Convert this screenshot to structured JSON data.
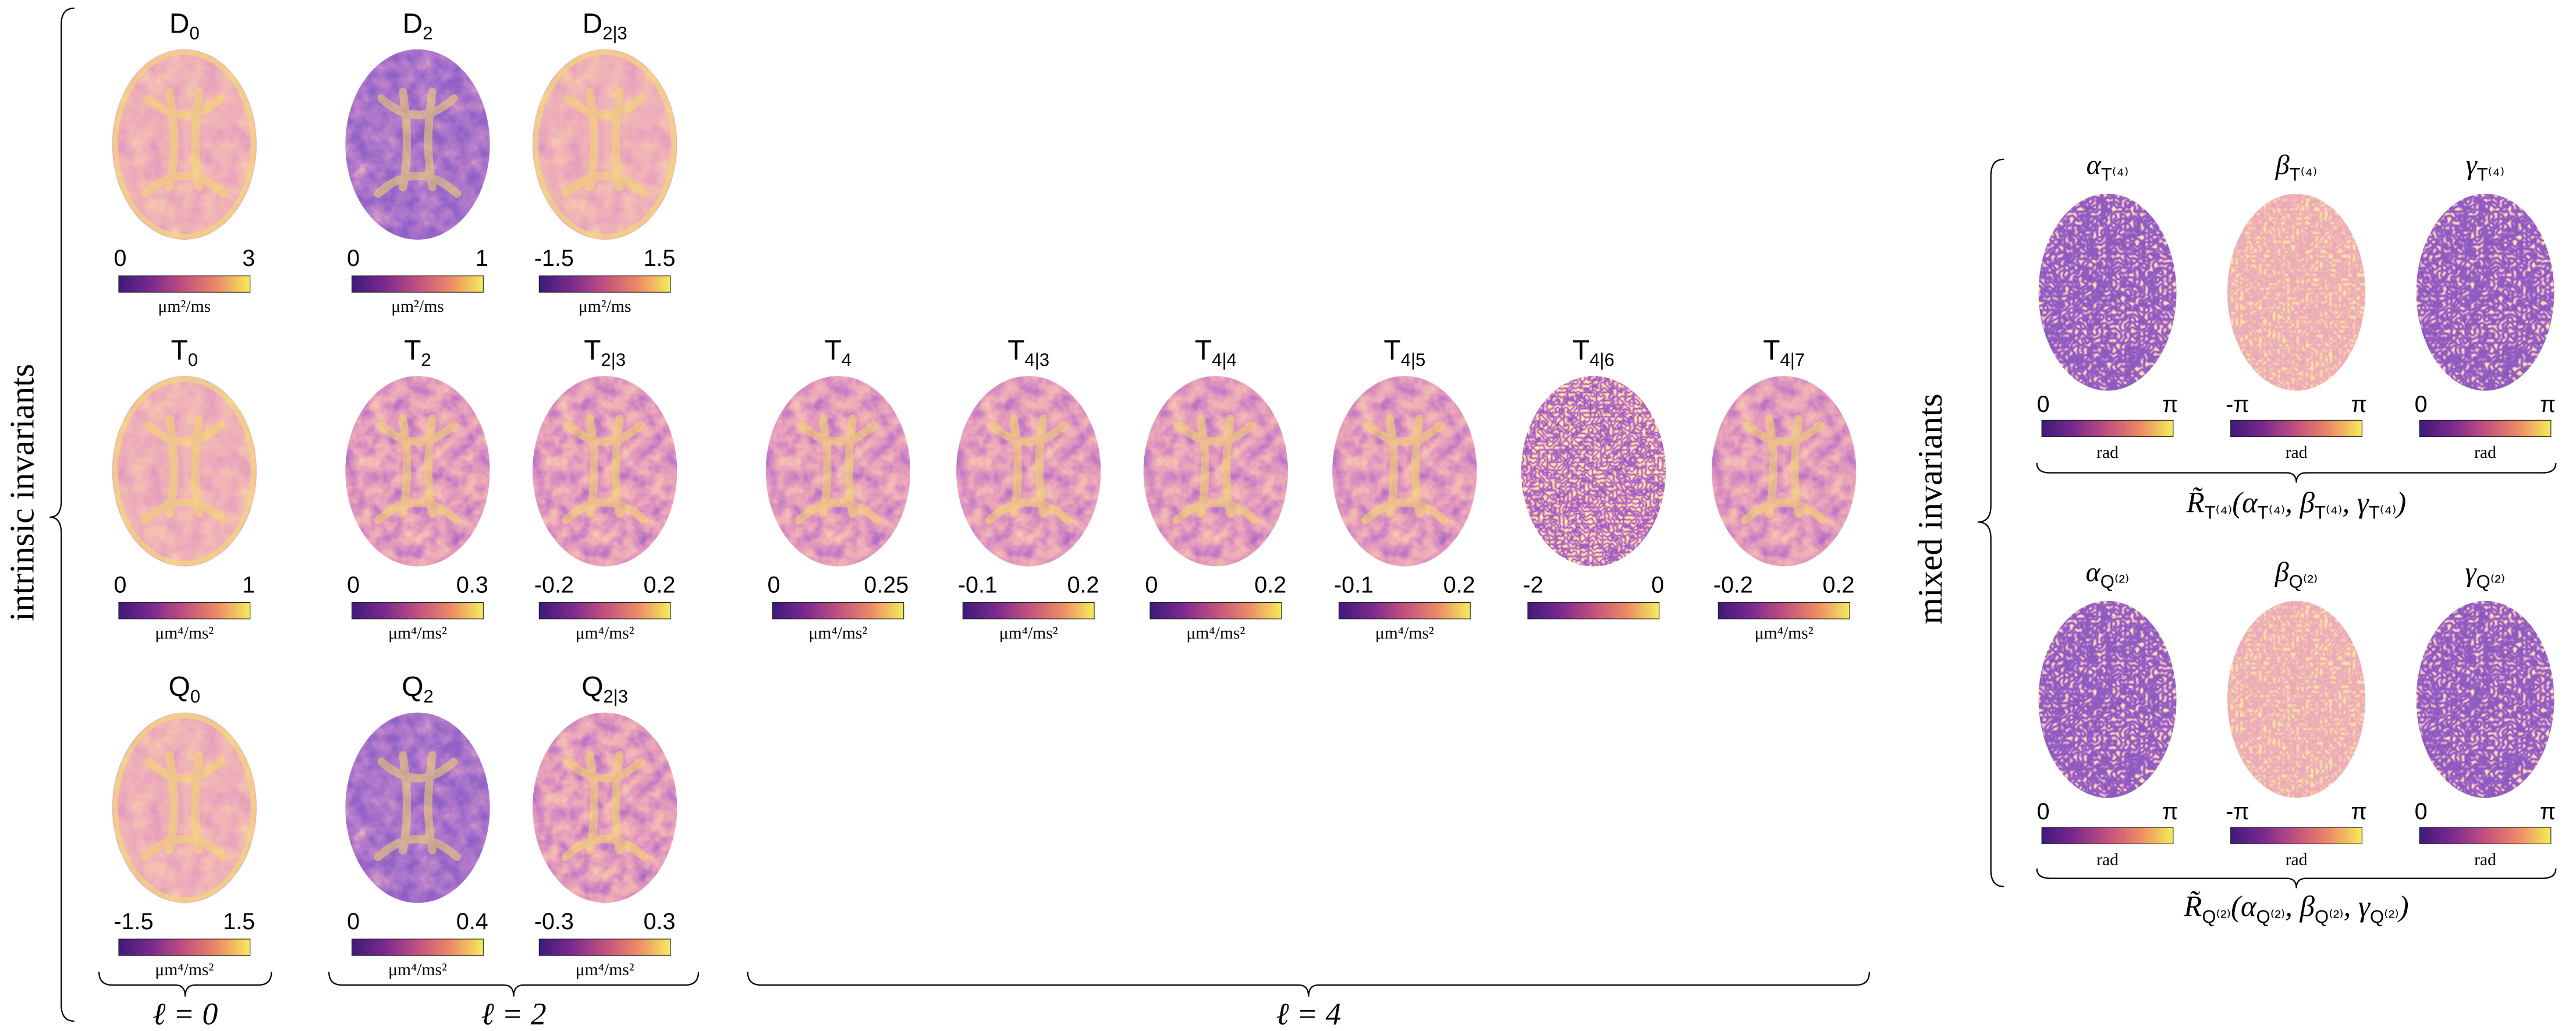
{
  "panels": [
    {
      "title": "D",
      "sub": "0",
      "min": "0",
      "max": "3",
      "unit": "μm²/ms"
    },
    {
      "title": "D",
      "sub": "2",
      "min": "0",
      "max": "1",
      "unit": "μm²/ms"
    },
    {
      "title": "D",
      "sub": "2|3",
      "min": "-1.5",
      "max": "1.5",
      "unit": "μm²/ms"
    },
    {
      "title": "T",
      "sub": "0",
      "min": "0",
      "max": "1",
      "unit": "μm⁴/ms²"
    },
    {
      "title": "T",
      "sub": "2",
      "min": "0",
      "max": "0.3",
      "unit": "μm⁴/ms²"
    },
    {
      "title": "T",
      "sub": "2|3",
      "min": "-0.2",
      "max": "0.2",
      "unit": "μm⁴/ms²"
    },
    {
      "title": "T",
      "sub": "4",
      "min": "0",
      "max": "0.25",
      "unit": "μm⁴/ms²"
    },
    {
      "title": "T",
      "sub": "4|3",
      "min": "-0.1",
      "max": "0.2",
      "unit": "μm⁴/ms²"
    },
    {
      "title": "T",
      "sub": "4|4",
      "min": "0",
      "max": "0.2",
      "unit": "μm⁴/ms²"
    },
    {
      "title": "T",
      "sub": "4|5",
      "min": "-0.1",
      "max": "0.2",
      "unit": "μm⁴/ms²"
    },
    {
      "title": "T",
      "sub": "4|6",
      "min": "-2",
      "max": "0"
    },
    {
      "title": "T",
      "sub": "4|7",
      "min": "-0.2",
      "max": "0.2",
      "unit": "μm⁴/ms²"
    },
    {
      "title": "Q",
      "sub": "0",
      "min": "-1.5",
      "max": "1.5",
      "unit": "μm⁴/ms²"
    },
    {
      "title": "Q",
      "sub": "2",
      "min": "0",
      "max": "0.4",
      "unit": "μm⁴/ms²"
    },
    {
      "title": "Q",
      "sub": "2|3",
      "min": "-0.3",
      "max": "0.3",
      "unit": "μm⁴/ms²"
    }
  ],
  "mixed": [
    {
      "title": "α",
      "sub": "T⁽⁴⁾",
      "min": "0",
      "max": "π",
      "unit": "rad"
    },
    {
      "title": "β",
      "sub": "T⁽⁴⁾",
      "min": "-π",
      "max": "π",
      "unit": "rad"
    },
    {
      "title": "γ",
      "sub": "T⁽⁴⁾",
      "min": "0",
      "max": "π",
      "unit": "rad"
    },
    {
      "title": "α",
      "sub": "Q⁽²⁾",
      "min": "0",
      "max": "π",
      "unit": "rad"
    },
    {
      "title": "β",
      "sub": "Q⁽²⁾",
      "min": "-π",
      "max": "π",
      "unit": "rad"
    },
    {
      "title": "γ",
      "sub": "Q⁽²⁾",
      "min": "0",
      "max": "π",
      "unit": "rad"
    }
  ],
  "formulas": [
    [
      {
        "text": "R̃"
      },
      {
        "sub": "T⁽⁴⁾"
      },
      {
        "text": "(α"
      },
      {
        "sub": "T⁽⁴⁾"
      },
      {
        "text": ", β"
      },
      {
        "sub": "T⁽⁴⁾"
      },
      {
        "text": ", γ"
      },
      {
        "sub": "T⁽⁴⁾"
      },
      {
        "text": ")"
      }
    ],
    [
      {
        "text": "R̃"
      },
      {
        "sub": "Q⁽²⁾"
      },
      {
        "text": "(α"
      },
      {
        "sub": "Q⁽²⁾"
      },
      {
        "text": ", β"
      },
      {
        "sub": "Q⁽²⁾"
      },
      {
        "text": ", γ"
      },
      {
        "sub": "Q⁽²⁾"
      },
      {
        "text": ")"
      }
    ]
  ],
  "labels": {
    "intrinsic": "intrinsic invariants",
    "mixed": "mixed invariants",
    "l0": "ℓ = 0",
    "l2": "ℓ = 2",
    "l4": "ℓ = 4"
  }
}
